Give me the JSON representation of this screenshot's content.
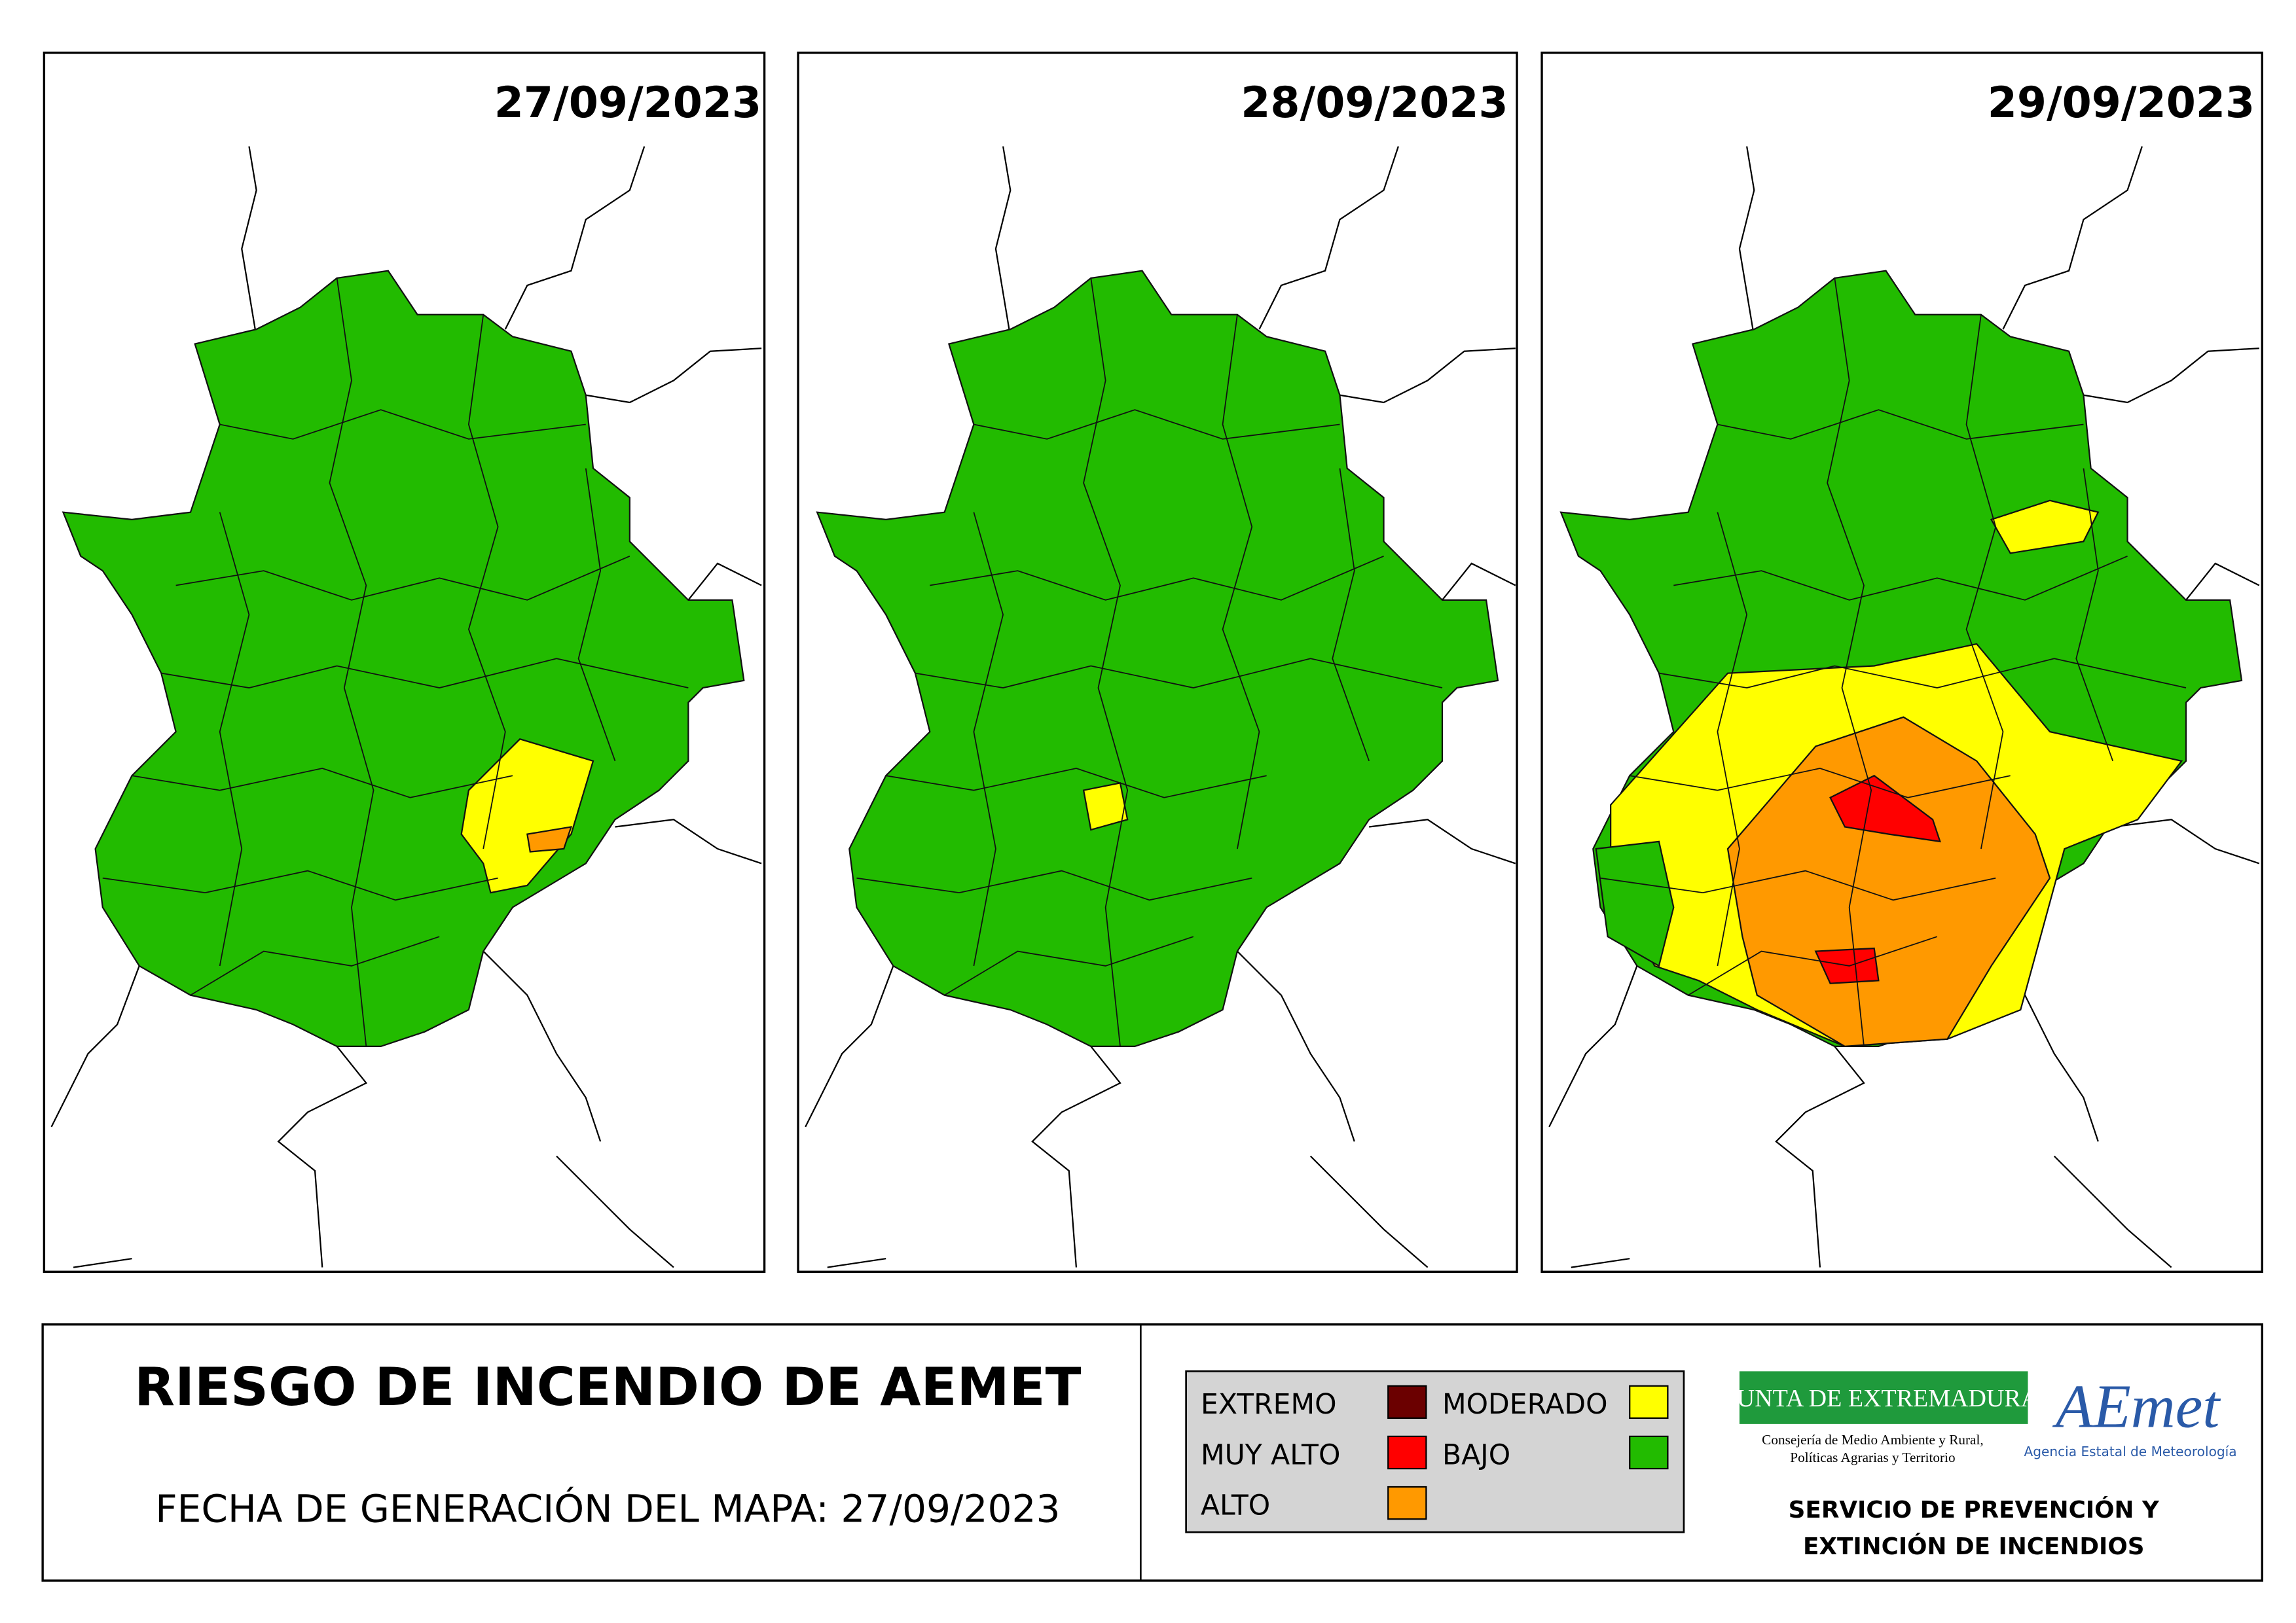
{
  "panels": [
    {
      "date": "27/09/2023"
    },
    {
      "date": "28/09/2023"
    },
    {
      "date": "29/09/2023"
    }
  ],
  "footer": {
    "title": "RIESGO DE INCENDIO DE AEMET",
    "subtitle": "FECHA DE GENERACIÓN DEL MAPA: 27/09/2023"
  },
  "legend": {
    "items": [
      {
        "label": "EXTREMO",
        "color": "#6b0000"
      },
      {
        "label": "MUY ALTO",
        "color": "#ff0000"
      },
      {
        "label": "ALTO",
        "color": "#ff9900"
      },
      {
        "label": "MODERADO",
        "color": "#ffff00"
      },
      {
        "label": "BAJO",
        "color": "#22bb00"
      }
    ]
  },
  "logos": {
    "junta": "JUNTA DE EXTREMADURA",
    "junta_sub": [
      "Consejería de Medio Ambiente y Rural,",
      "Políticas Agrarias y Territorio"
    ],
    "aemet": "AEmet",
    "aemet_sub": "Agencia Estatal de Meteorología",
    "service": [
      "SERVICIO DE PREVENCIÓN Y",
      "EXTINCIÓN DE INCENDIOS"
    ]
  }
}
